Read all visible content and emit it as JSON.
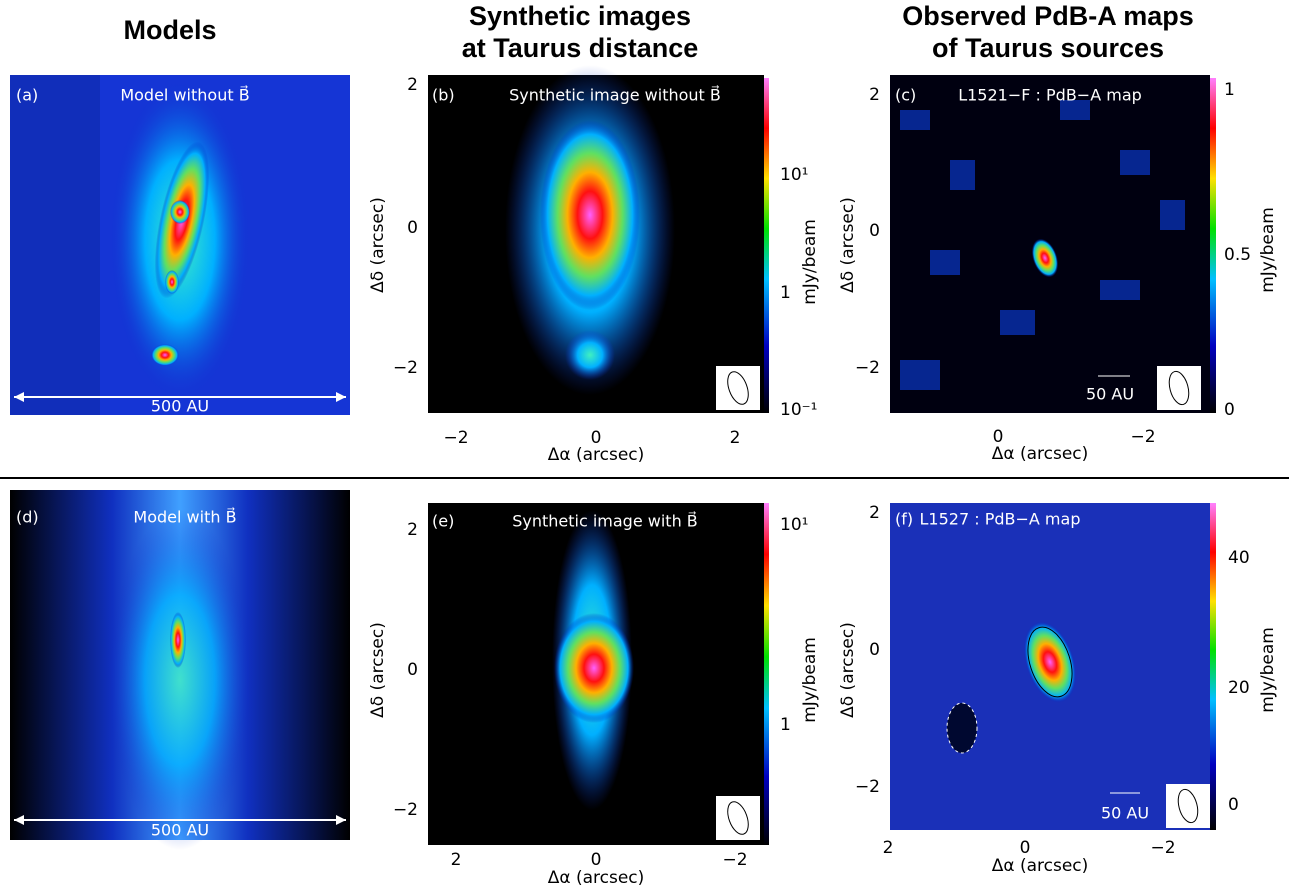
{
  "columns": [
    {
      "title_lines": [
        "Models"
      ]
    },
    {
      "title_lines": [
        "Synthetic images",
        "at Taurus distance"
      ]
    },
    {
      "title_lines": [
        "Observed PdB-A maps",
        "of Taurus sources"
      ]
    }
  ],
  "panels": {
    "a": {
      "label": "(a)",
      "title": "Model without B⃗",
      "scale": "500 AU"
    },
    "b": {
      "label": "(b)",
      "title": "Synthetic image without B⃗",
      "xlabel": "Δα (arcsec)",
      "ylabel": "Δδ (arcsec)",
      "xticks": [
        "−2",
        "0",
        "2"
      ],
      "yticks": [
        "2",
        "0",
        "−2"
      ],
      "colorbar_ticks": [
        "10¹",
        "1",
        "10⁻¹"
      ],
      "colorbar_label": "mJy/beam"
    },
    "c": {
      "label": "(c)",
      "title": "L1521−F : PdB−A map",
      "scale": "50 AU",
      "xlabel": "Δα (arcsec)",
      "ylabel": "Δδ (arcsec)",
      "xticks": [
        "0",
        "−2"
      ],
      "yticks": [
        "2",
        "0",
        "−2"
      ],
      "colorbar_ticks": [
        "1",
        "0.5",
        "0"
      ],
      "colorbar_label": "mJy/beam"
    },
    "d": {
      "label": "(d)",
      "title": "Model with B⃗",
      "scale": "500 AU"
    },
    "e": {
      "label": "(e)",
      "title": "Synthetic image with B⃗",
      "xlabel": "Δα (arcsec)",
      "ylabel": "Δδ (arcsec)",
      "xticks": [
        "2",
        "0",
        "−2"
      ],
      "yticks": [
        "2",
        "0",
        "−2"
      ],
      "colorbar_ticks": [
        "10¹",
        "1"
      ],
      "colorbar_label": "mJy/beam"
    },
    "f": {
      "label": "(f)",
      "title": "L1527 : PdB−A map",
      "scale": "50 AU",
      "xlabel": "Δα (arcsec)",
      "ylabel": "Δδ (arcsec)",
      "xticks": [
        "2",
        "0",
        "−2"
      ],
      "yticks": [
        "2",
        "0",
        "−2"
      ],
      "colorbar_ticks": [
        "40",
        "20",
        "0"
      ],
      "colorbar_label": "mJy/beam"
    }
  }
}
